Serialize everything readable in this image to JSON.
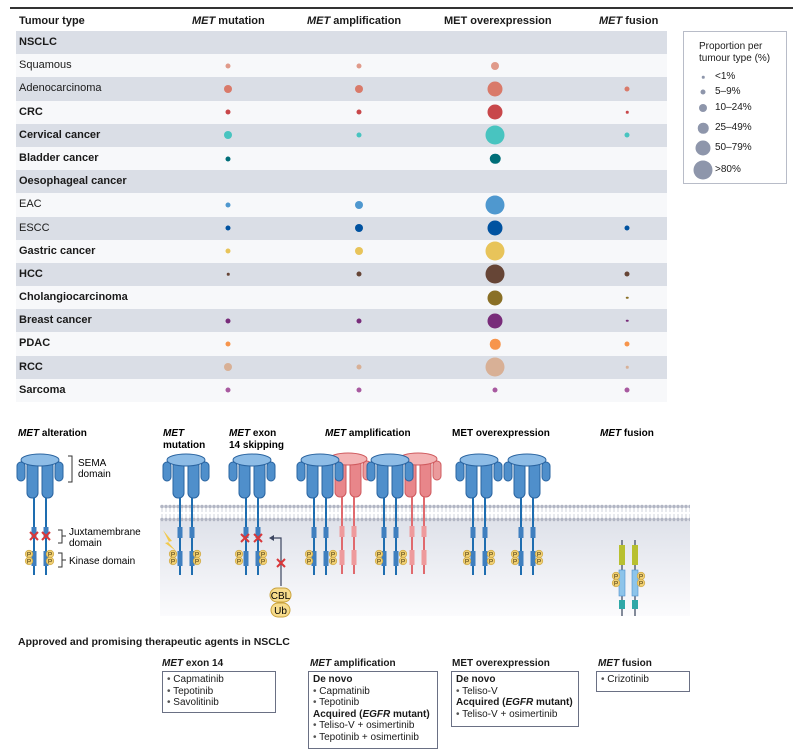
{
  "table": {
    "headers": {
      "tumour_type": "Tumour type",
      "mutation_italic": "MET",
      "mutation_rest": " mutation",
      "amplification_italic": "MET",
      "amplification_rest": " amplification",
      "overexpression": "MET overexpression",
      "fusion_italic": "MET",
      "fusion_rest": " fusion"
    },
    "rows": [
      {
        "label": "NSCLC",
        "bold": true,
        "section": true
      },
      {
        "label": "Squamous",
        "bold": false,
        "color": "#e09a8a",
        "mutation": "5–9%",
        "amplification": "5–9%",
        "overexpression": "10–24%",
        "fusion": null
      },
      {
        "label": "Adenocarcinoma",
        "bold": false,
        "color": "#d97a6a",
        "mutation": "10–24%",
        "amplification": "10–24%",
        "overexpression": "50–79%",
        "fusion": "5–9%"
      },
      {
        "label": "CRC",
        "bold": true,
        "color": "#c8474a",
        "mutation": "5–9%",
        "amplification": "5–9%",
        "overexpression": "50–79%",
        "fusion": "<1%"
      },
      {
        "label": "Cervical cancer",
        "bold": true,
        "color": "#48c4c0",
        "mutation": "10–24%",
        "amplification": "5–9%",
        "overexpression": ">80%",
        "fusion": "5–9%"
      },
      {
        "label": "Bladder cancer",
        "bold": true,
        "color": "#006e78",
        "mutation": "5–9%",
        "amplification": null,
        "overexpression": "25–49%",
        "fusion": null
      },
      {
        "label": "Oesophageal cancer",
        "bold": true,
        "section": true
      },
      {
        "label": "EAC",
        "bold": false,
        "color": "#4f98cf",
        "mutation": "5–9%",
        "amplification": "10–24%",
        "overexpression": ">80%",
        "fusion": null
      },
      {
        "label": "ESCC",
        "bold": false,
        "color": "#0052a0",
        "mutation": "5–9%",
        "amplification": "10–24%",
        "overexpression": "50–79%",
        "fusion": "5–9%"
      },
      {
        "label": "Gastric cancer",
        "bold": true,
        "color": "#e8c45a",
        "mutation": "5–9%",
        "amplification": "10–24%",
        "overexpression": ">80%",
        "fusion": null
      },
      {
        "label": "HCC",
        "bold": true,
        "color": "#664536",
        "mutation": "<1%",
        "amplification": "5–9%",
        "overexpression": ">80%",
        "fusion": "5–9%"
      },
      {
        "label": "Cholangiocarcinoma",
        "bold": true,
        "color": "#8a7026",
        "mutation": null,
        "amplification": null,
        "overexpression": "50–79%",
        "fusion": "<1%"
      },
      {
        "label": "Breast cancer",
        "bold": true,
        "color": "#782c7a",
        "mutation": "5–9%",
        "amplification": "5–9%",
        "overexpression": "50–79%",
        "fusion": "<1%"
      },
      {
        "label": "PDAC",
        "bold": true,
        "color": "#f7954c",
        "mutation": "5–9%",
        "amplification": null,
        "overexpression": "25–49%",
        "fusion": "5–9%"
      },
      {
        "label": "RCC",
        "bold": true,
        "color": "#d8b096",
        "mutation": "10–24%",
        "amplification": "5–9%",
        "overexpression": ">80%",
        "fusion": "<1%"
      },
      {
        "label": "Sarcoma",
        "bold": true,
        "color": "#a85aa0",
        "mutation": "5–9%",
        "amplification": "5–9%",
        "overexpression": "5–9%",
        "fusion": "5–9%"
      }
    ]
  },
  "legend": {
    "title_line1": "Proportion per",
    "title_line2": "tumour type (%)",
    "items": [
      "<1%",
      "5–9%",
      "10–24%",
      "25–49%",
      "50–79%",
      ">80%"
    ],
    "color": "#8e96ab"
  },
  "diagram": {
    "alteration_italic": "MET",
    "alteration_rest": " alteration",
    "sema": [
      "SEMA",
      "domain"
    ],
    "juxta": [
      "Juxtamembrane",
      "domain"
    ],
    "kinase": "Kinase domain",
    "mutation": [
      "MET",
      "mutation"
    ],
    "exon14": [
      "MET",
      " exon",
      "14 skipping"
    ],
    "amplification_italic": "MET",
    "amplification_rest": " amplification",
    "overexpression": "MET overexpression",
    "fusion_italic": "MET",
    "fusion_rest": " fusion",
    "p": "P",
    "cbl": "CBL",
    "ub": "Ub",
    "colors": {
      "receptor": "#4f8fcb",
      "amplified": "#e8868a",
      "phospho": "#f0cf72",
      "cross": "#d9383a"
    }
  },
  "therapy": {
    "title": "Approved and promising therapeutic agents in NSCLC",
    "exon14": {
      "title_italic": "MET",
      "title_rest": " exon 14",
      "items": [
        "Capmatinib",
        "Tepotinib",
        "Savolitinib"
      ]
    },
    "amplification": {
      "title_italic": "MET",
      "title_rest": " amplification",
      "denovo": "De novo",
      "denovo_items": [
        "Capmatinib",
        "Tepotinib"
      ],
      "acquired_pre": "Acquired (",
      "acquired_italic": "EGFR",
      "acquired_post": " mutant)",
      "acquired_items": [
        "Teliso-V + osimertinib",
        "Tepotinib + osimertinib"
      ]
    },
    "overexpression": {
      "title": "MET overexpression",
      "denovo": "De novo",
      "denovo_items": [
        "Teliso-V"
      ],
      "acquired_pre": "Acquired (",
      "acquired_italic": "EGFR",
      "acquired_post": " mutant)",
      "acquired_items": [
        "Teliso-V + osimertinib"
      ]
    },
    "fusion": {
      "title_italic": "MET",
      "title_rest": " fusion",
      "items": [
        "Crizotinib"
      ]
    }
  }
}
